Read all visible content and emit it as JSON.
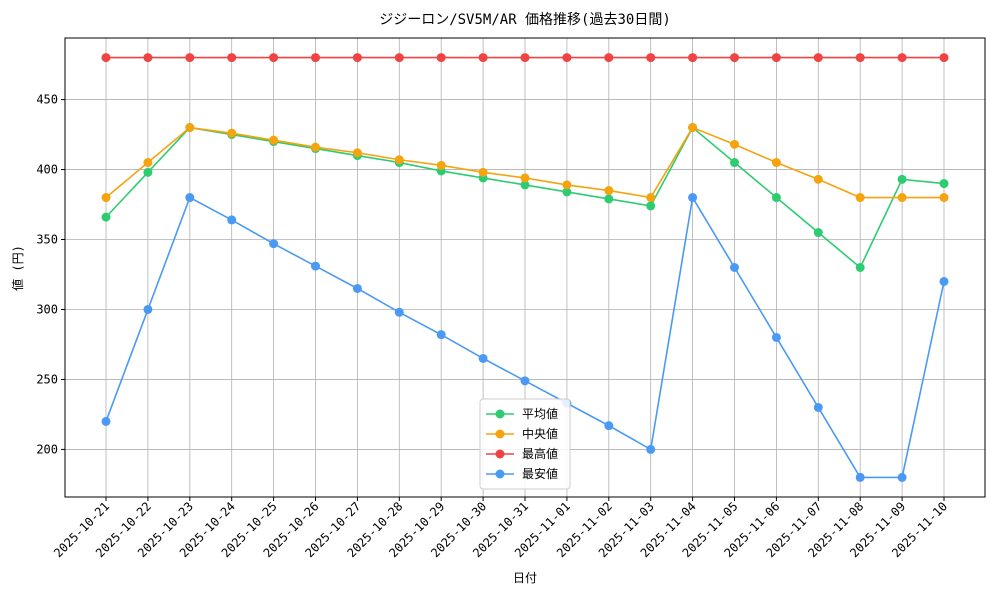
{
  "chart_data": {
    "type": "line",
    "title": "ジジーロン/SV5M/AR 価格推移(過去30日間)",
    "x_label": "日付",
    "y_label": "値 (円)",
    "categories": [
      "2025-10-21",
      "2025-10-22",
      "2025-10-23",
      "2025-10-24",
      "2025-10-25",
      "2025-10-26",
      "2025-10-27",
      "2025-10-28",
      "2025-10-29",
      "2025-10-30",
      "2025-10-31",
      "2025-11-01",
      "2025-11-02",
      "2025-11-03",
      "2025-11-04",
      "2025-11-05",
      "2025-11-06",
      "2025-11-07",
      "2025-11-08",
      "2025-11-09",
      "2025-11-10"
    ],
    "series": [
      {
        "name": "平均値",
        "color": "#2ecc71",
        "values": [
          366,
          398,
          430,
          425,
          420,
          415,
          410,
          405,
          399,
          394,
          389,
          384,
          379,
          374,
          430,
          405,
          380,
          355,
          330,
          393,
          390
        ]
      },
      {
        "name": "中央値",
        "color": "#f5a30f",
        "values": [
          380,
          405,
          430,
          426,
          421,
          416,
          412,
          407,
          403,
          398,
          394,
          389,
          385,
          380,
          430,
          418,
          405,
          393,
          380,
          380,
          380
        ]
      },
      {
        "name": "最高値",
        "color": "#ef4444",
        "values": [
          480,
          480,
          480,
          480,
          480,
          480,
          480,
          480,
          480,
          480,
          480,
          480,
          480,
          480,
          480,
          480,
          480,
          480,
          480,
          480,
          480
        ]
      },
      {
        "name": "最安値",
        "color": "#4a9af5",
        "values": [
          220,
          300,
          380,
          364,
          347,
          331,
          315,
          298,
          282,
          265,
          249,
          233,
          217,
          200,
          380,
          330,
          280,
          230,
          180,
          180,
          320
        ]
      }
    ],
    "ylim": [
      166,
      494
    ],
    "yticks": [
      200,
      250,
      300,
      350,
      400,
      450
    ],
    "grid": true,
    "legend": "lower center"
  }
}
